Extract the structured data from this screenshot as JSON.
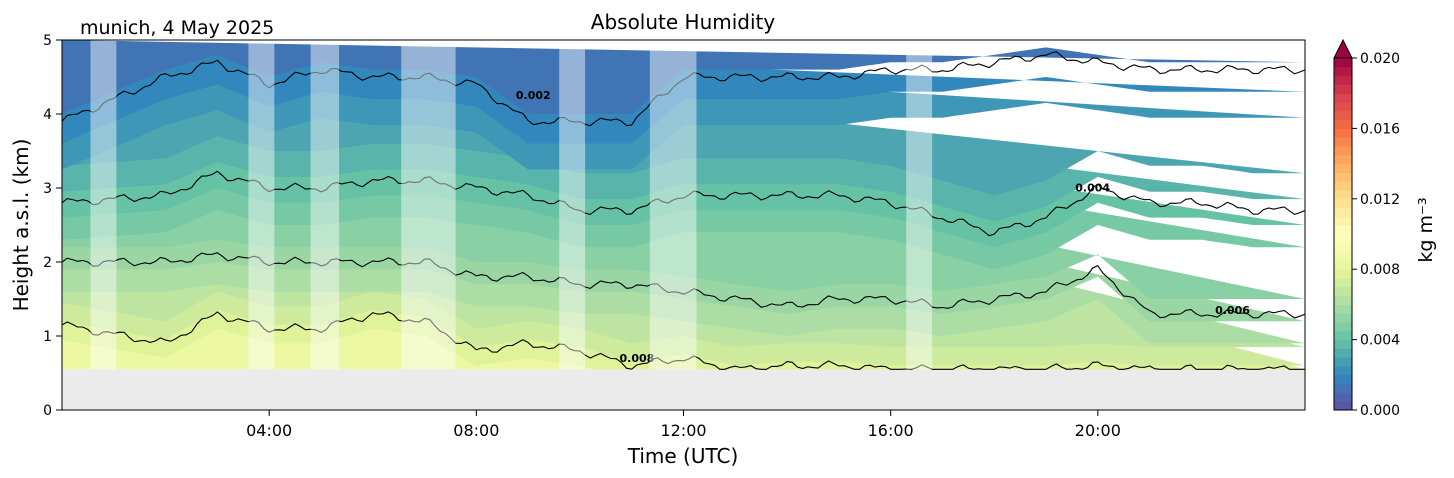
{
  "chart_data": {
    "type": "heatmap",
    "title": "Absolute Humidity",
    "location_date": "munich, 4 May 2025",
    "xlabel": "Time (UTC)",
    "ylabel": "Height a.s.l. (km)",
    "xlim": [
      0,
      24
    ],
    "ylim": [
      0,
      5
    ],
    "x_ticks": [
      4,
      8,
      12,
      16,
      20
    ],
    "x_tick_labels": [
      "04:00",
      "08:00",
      "12:00",
      "16:00",
      "20:00"
    ],
    "y_ticks": [
      0,
      1,
      2,
      3,
      4,
      5
    ],
    "y_tick_labels": [
      "0",
      "1",
      "2",
      "3",
      "4",
      "5"
    ],
    "data_bottom_km": 0.55,
    "colorbar": {
      "label": "kg m⁻³",
      "min": 0.0,
      "max": 0.02,
      "ticks": [
        0.0,
        0.004,
        0.008,
        0.012,
        0.016,
        0.02
      ],
      "tick_labels": [
        "0.000",
        "0.004",
        "0.008",
        "0.012",
        "0.016",
        "0.020"
      ],
      "extend": "max",
      "colormap": "Spectral_r"
    },
    "contour_levels": [
      0.002,
      0.004,
      0.006,
      0.008
    ],
    "contour_labels": [
      {
        "text": "0.002",
        "x": 9.1,
        "y": 4.2
      },
      {
        "text": "0.004",
        "x": 19.9,
        "y": 2.95
      },
      {
        "text": "0.006",
        "x": 22.6,
        "y": 1.3
      },
      {
        "text": "0.008",
        "x": 11.1,
        "y": 0.65
      }
    ],
    "contour_height_profiles_km": {
      "hours": [
        0,
        2,
        3,
        4,
        5,
        6,
        7,
        8,
        9,
        10,
        11,
        12,
        13,
        14,
        15,
        16,
        17,
        18,
        19,
        20,
        21,
        22,
        23,
        24
      ],
      "line_4.5": [
        3.9,
        4.5,
        4.7,
        4.4,
        4.6,
        4.5,
        4.5,
        4.4,
        3.9,
        3.9,
        3.9,
        4.5,
        4.5,
        4.5,
        4.5,
        4.6,
        4.6,
        4.7,
        4.8,
        4.7,
        4.6,
        4.6,
        4.6,
        4.6
      ],
      "line_3.0": [
        2.8,
        2.9,
        3.2,
        3.0,
        3.0,
        3.1,
        3.1,
        3.0,
        2.9,
        2.7,
        2.7,
        2.9,
        2.9,
        2.9,
        2.9,
        2.8,
        2.6,
        2.4,
        2.6,
        3.0,
        2.8,
        2.8,
        2.7,
        2.7
      ],
      "line_2.0": [
        2.0,
        2.0,
        2.1,
        2.0,
        2.0,
        2.0,
        2.0,
        1.8,
        1.8,
        1.7,
        1.7,
        1.6,
        1.5,
        1.4,
        1.5,
        1.5,
        1.4,
        1.5,
        1.6,
        1.9,
        1.3,
        1.3,
        1.3,
        1.3
      ],
      "line_1.0": [
        1.15,
        0.9,
        1.3,
        1.1,
        1.1,
        1.3,
        1.2,
        0.8,
        0.9,
        0.8,
        0.6,
        0.7,
        0.55,
        0.6,
        0.6,
        0.55,
        0.55,
        0.55,
        0.55,
        0.6,
        0.55,
        0.55,
        0.55,
        0.55
      ]
    },
    "data_gaps_hours": [
      [
        0.55,
        1.05
      ],
      [
        3.6,
        4.1
      ],
      [
        4.8,
        5.35
      ],
      [
        6.55,
        7.6
      ],
      [
        9.6,
        10.1
      ],
      [
        11.35,
        12.25
      ],
      [
        16.3,
        16.8
      ]
    ],
    "colors": {
      "band_low": "#eef5a8",
      "band_mid": "#5cbfa8",
      "band_high": "#3a7fbc",
      "band_top": "#5e4fa2",
      "missing": "#ebebeb",
      "gap_overlay": "#ffffff",
      "contour": "#000000"
    }
  }
}
